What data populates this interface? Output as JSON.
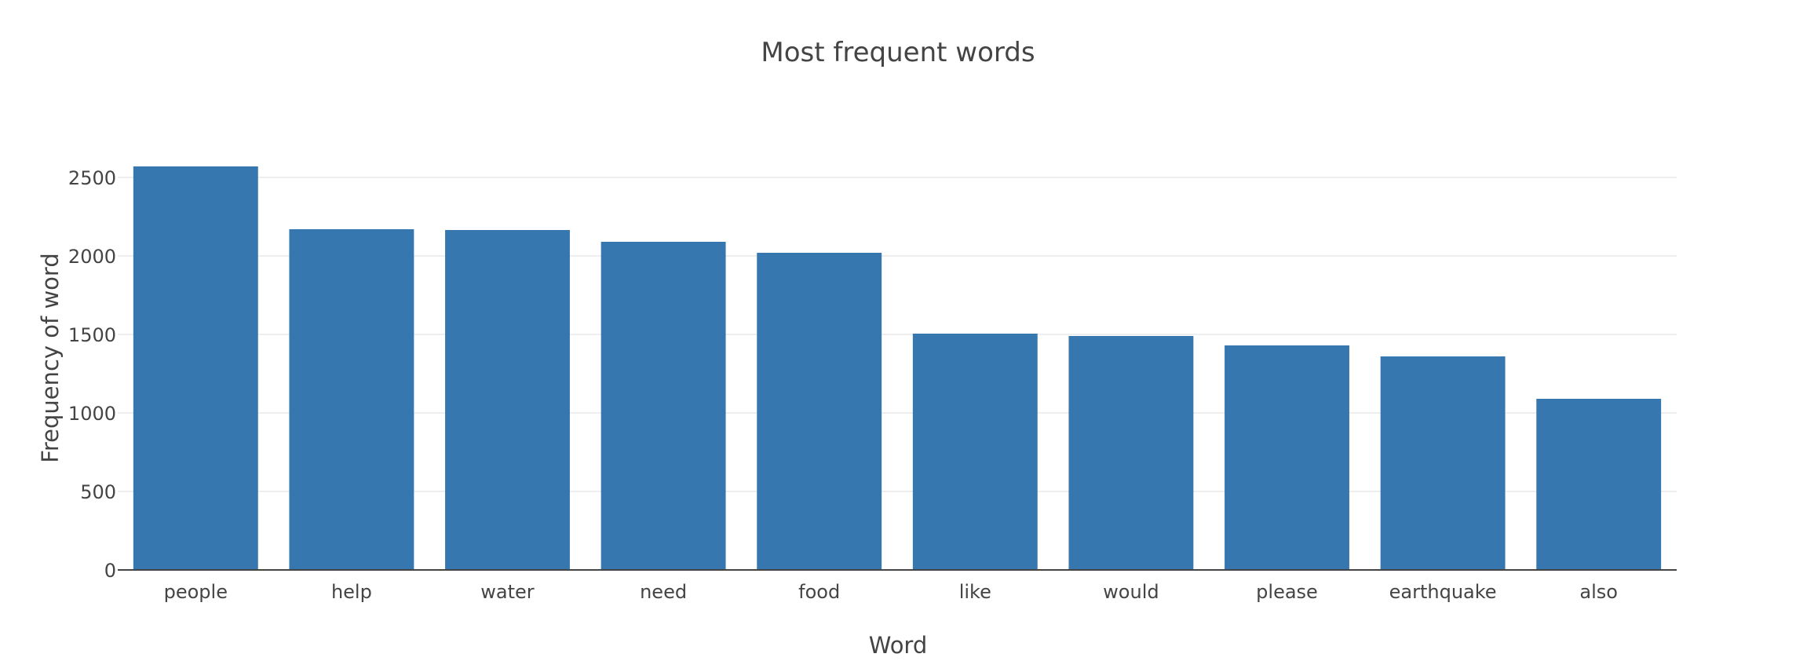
{
  "chart_data": {
    "type": "bar",
    "title": "Most frequent words",
    "xlabel": "Word",
    "ylabel": "Frequency of word",
    "categories": [
      "people",
      "help",
      "water",
      "need",
      "food",
      "like",
      "would",
      "please",
      "earthquake",
      "also"
    ],
    "values": [
      2570,
      2170,
      2165,
      2090,
      2020,
      1505,
      1490,
      1430,
      1360,
      1090
    ],
    "ylim": [
      0,
      2680
    ],
    "yticks": [
      0,
      500,
      1000,
      1500,
      2000,
      2500
    ],
    "bar_color": "#3777b0",
    "grid": true,
    "legend": "none"
  }
}
